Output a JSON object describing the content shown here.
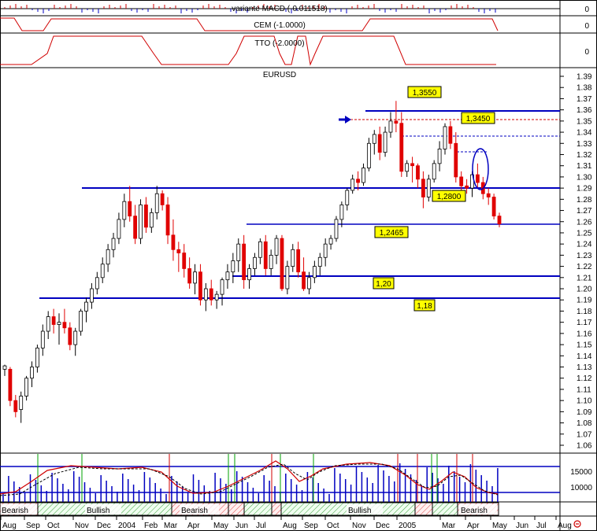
{
  "panels": {
    "macd_label": "variante MACD (-0.011518)",
    "macd_value": "0",
    "cem_label": "CEM (-1.0000)",
    "cem_value": "0",
    "tto_label": "TTO (-2.0000)",
    "tto_value": "0",
    "main_label": "EURUSD"
  },
  "level_labels": [
    "1,3550",
    "1,3450",
    "1,2800",
    "1,2465",
    "1,20",
    "1,18"
  ],
  "volume_ticks": [
    "15000",
    "10000"
  ],
  "bottom_icon": "clock-icon",
  "regime_bands": [
    {
      "label": "Bearish",
      "type": "bearish"
    },
    {
      "label": "Bullish",
      "type": "bullish"
    },
    {
      "label": "Bearish",
      "type": "bearish"
    },
    {
      "label": "",
      "type": "bearish"
    },
    {
      "label": "",
      "type": "bullish"
    },
    {
      "label": "",
      "type": "bearish"
    },
    {
      "label": "Bullish",
      "type": "bullish"
    },
    {
      "label": "",
      "type": "bearish"
    },
    {
      "label": "",
      "type": "bullish"
    },
    {
      "label": "Bearish",
      "type": "bearish"
    }
  ],
  "colors": {
    "up": "#ffffff",
    "down": "#e00000",
    "level_line": "#0000c0",
    "tto_line": "#d00000",
    "highlight_label": "#ffff00",
    "bullish_band": "#d8f0d8",
    "bearish_band": "#ffe0e0"
  },
  "chart_data": {
    "type": "candlestick",
    "title": "EURUSD",
    "y_ticks": [
      "1.39",
      "1.38",
      "1.37",
      "1.36",
      "1.35",
      "1.34",
      "1.33",
      "1.32",
      "1.31",
      "1.30",
      "1.29",
      "1.28",
      "1.27",
      "1.26",
      "1.25",
      "1.24",
      "1.23",
      "1.22",
      "1.21",
      "1.20",
      "1.19",
      "1.18",
      "1.17",
      "1.16",
      "1.15",
      "1.14",
      "1.13",
      "1.12",
      "1.11",
      "1.10",
      "1.09",
      "1.08",
      "1.07",
      "1.06"
    ],
    "ylim": [
      1.053,
      1.395
    ],
    "x_labels": [
      "Aug",
      "Sep",
      "Oct",
      "Nov",
      "Dec",
      "2004",
      "Feb",
      "Mar",
      "Apr",
      "May",
      "Jun",
      "Jul",
      "Aug",
      "Sep",
      "Oct",
      "Nov",
      "Dec",
      "2005",
      "Mar",
      "Apr",
      "May",
      "Jun",
      "Jul",
      "Aug"
    ],
    "levels": [
      {
        "label": "1,3550",
        "value": 1.355,
        "style": "solid"
      },
      {
        "label": "1,3450",
        "value": 1.345,
        "style": "dashed"
      },
      {
        "label": "1,2800",
        "value": 1.28,
        "style": "solid"
      },
      {
        "label": "1,2465",
        "value": 1.2465,
        "style": "solid"
      },
      {
        "label": "1,20",
        "value": 1.2,
        "style": "solid"
      },
      {
        "label": "1,18",
        "value": 1.18,
        "style": "solid"
      }
    ],
    "weekly_ohlc": [
      [
        1.128,
        1.132,
        1.122,
        1.131
      ],
      [
        1.128,
        1.13,
        1.095,
        1.1
      ],
      [
        1.1,
        1.105,
        1.085,
        1.09
      ],
      [
        1.092,
        1.108,
        1.08,
        1.104
      ],
      [
        1.104,
        1.122,
        1.1,
        1.12
      ],
      [
        1.12,
        1.135,
        1.112,
        1.13
      ],
      [
        1.13,
        1.15,
        1.125,
        1.147
      ],
      [
        1.147,
        1.168,
        1.14,
        1.162
      ],
      [
        1.162,
        1.18,
        1.155,
        1.175
      ],
      [
        1.175,
        1.182,
        1.16,
        1.168
      ],
      [
        1.168,
        1.178,
        1.15,
        1.17
      ],
      [
        1.17,
        1.182,
        1.16,
        1.165
      ],
      [
        1.165,
        1.17,
        1.145,
        1.15
      ],
      [
        1.15,
        1.165,
        1.14,
        1.162
      ],
      [
        1.162,
        1.182,
        1.158,
        1.18
      ],
      [
        1.18,
        1.192,
        1.17,
        1.188
      ],
      [
        1.188,
        1.205,
        1.182,
        1.2
      ],
      [
        1.2,
        1.215,
        1.195,
        1.21
      ],
      [
        1.21,
        1.228,
        1.205,
        1.222
      ],
      [
        1.222,
        1.24,
        1.215,
        1.235
      ],
      [
        1.235,
        1.25,
        1.228,
        1.245
      ],
      [
        1.245,
        1.268,
        1.24,
        1.262
      ],
      [
        1.262,
        1.285,
        1.255,
        1.278
      ],
      [
        1.278,
        1.292,
        1.26,
        1.265
      ],
      [
        1.265,
        1.275,
        1.24,
        1.245
      ],
      [
        1.245,
        1.28,
        1.24,
        1.275
      ],
      [
        1.275,
        1.282,
        1.25,
        1.255
      ],
      [
        1.255,
        1.272,
        1.25,
        1.268
      ],
      [
        1.268,
        1.292,
        1.262,
        1.285
      ],
      [
        1.285,
        1.288,
        1.27,
        1.275
      ],
      [
        1.275,
        1.282,
        1.24,
        1.248
      ],
      [
        1.248,
        1.262,
        1.225,
        1.235
      ],
      [
        1.235,
        1.242,
        1.215,
        1.232
      ],
      [
        1.232,
        1.24,
        1.21,
        1.218
      ],
      [
        1.218,
        1.228,
        1.2,
        1.205
      ],
      [
        1.205,
        1.222,
        1.195,
        1.215
      ],
      [
        1.215,
        1.222,
        1.185,
        1.19
      ],
      [
        1.19,
        1.205,
        1.18,
        1.2
      ],
      [
        1.2,
        1.208,
        1.185,
        1.19
      ],
      [
        1.19,
        1.198,
        1.182,
        1.195
      ],
      [
        1.195,
        1.21,
        1.185,
        1.208
      ],
      [
        1.208,
        1.222,
        1.2,
        1.215
      ],
      [
        1.215,
        1.232,
        1.205,
        1.225
      ],
      [
        1.225,
        1.245,
        1.215,
        1.24
      ],
      [
        1.24,
        1.248,
        1.2,
        1.208
      ],
      [
        1.208,
        1.222,
        1.2,
        1.218
      ],
      [
        1.218,
        1.232,
        1.212,
        1.228
      ],
      [
        1.228,
        1.245,
        1.222,
        1.242
      ],
      [
        1.242,
        1.248,
        1.212,
        1.218
      ],
      [
        1.218,
        1.235,
        1.212,
        1.23
      ],
      [
        1.23,
        1.248,
        1.222,
        1.245
      ],
      [
        1.245,
        1.248,
        1.198,
        1.2
      ],
      [
        1.2,
        1.225,
        1.195,
        1.22
      ],
      [
        1.22,
        1.24,
        1.215,
        1.235
      ],
      [
        1.235,
        1.242,
        1.21,
        1.215
      ],
      [
        1.215,
        1.228,
        1.198,
        1.2
      ],
      [
        1.2,
        1.215,
        1.195,
        1.21
      ],
      [
        1.21,
        1.225,
        1.205,
        1.22
      ],
      [
        1.22,
        1.232,
        1.212,
        1.228
      ],
      [
        1.228,
        1.245,
        1.22,
        1.24
      ],
      [
        1.24,
        1.248,
        1.235,
        1.245
      ],
      [
        1.245,
        1.265,
        1.242,
        1.262
      ],
      [
        1.262,
        1.278,
        1.255,
        1.275
      ],
      [
        1.275,
        1.29,
        1.27,
        1.288
      ],
      [
        1.288,
        1.302,
        1.285,
        1.298
      ],
      [
        1.298,
        1.305,
        1.288,
        1.295
      ],
      [
        1.295,
        1.312,
        1.292,
        1.308
      ],
      [
        1.308,
        1.335,
        1.305,
        1.33
      ],
      [
        1.33,
        1.342,
        1.32,
        1.338
      ],
      [
        1.338,
        1.345,
        1.315,
        1.322
      ],
      [
        1.322,
        1.345,
        1.318,
        1.34
      ],
      [
        1.34,
        1.358,
        1.335,
        1.35
      ],
      [
        1.35,
        1.368,
        1.34,
        1.348
      ],
      [
        1.348,
        1.358,
        1.3,
        1.305
      ],
      [
        1.305,
        1.315,
        1.3,
        1.312
      ],
      [
        1.312,
        1.318,
        1.295,
        1.31
      ],
      [
        1.31,
        1.312,
        1.29,
        1.298
      ],
      [
        1.298,
        1.305,
        1.272,
        1.282
      ],
      [
        1.282,
        1.302,
        1.278,
        1.298
      ],
      [
        1.298,
        1.315,
        1.295,
        1.312
      ],
      [
        1.312,
        1.332,
        1.305,
        1.325
      ],
      [
        1.325,
        1.348,
        1.32,
        1.345
      ],
      [
        1.345,
        1.35,
        1.325,
        1.33
      ],
      [
        1.33,
        1.34,
        1.295,
        1.3
      ],
      [
        1.3,
        1.305,
        1.285,
        1.292
      ],
      [
        1.292,
        1.298,
        1.285,
        1.29
      ],
      [
        1.29,
        1.305,
        1.282,
        1.302
      ],
      [
        1.302,
        1.312,
        1.29,
        1.295
      ],
      [
        1.295,
        1.3,
        1.28,
        1.285
      ],
      [
        1.285,
        1.29,
        1.275,
        1.282
      ],
      [
        1.282,
        1.285,
        1.262,
        1.265
      ],
      [
        1.265,
        1.268,
        1.255,
        1.258
      ]
    ]
  }
}
